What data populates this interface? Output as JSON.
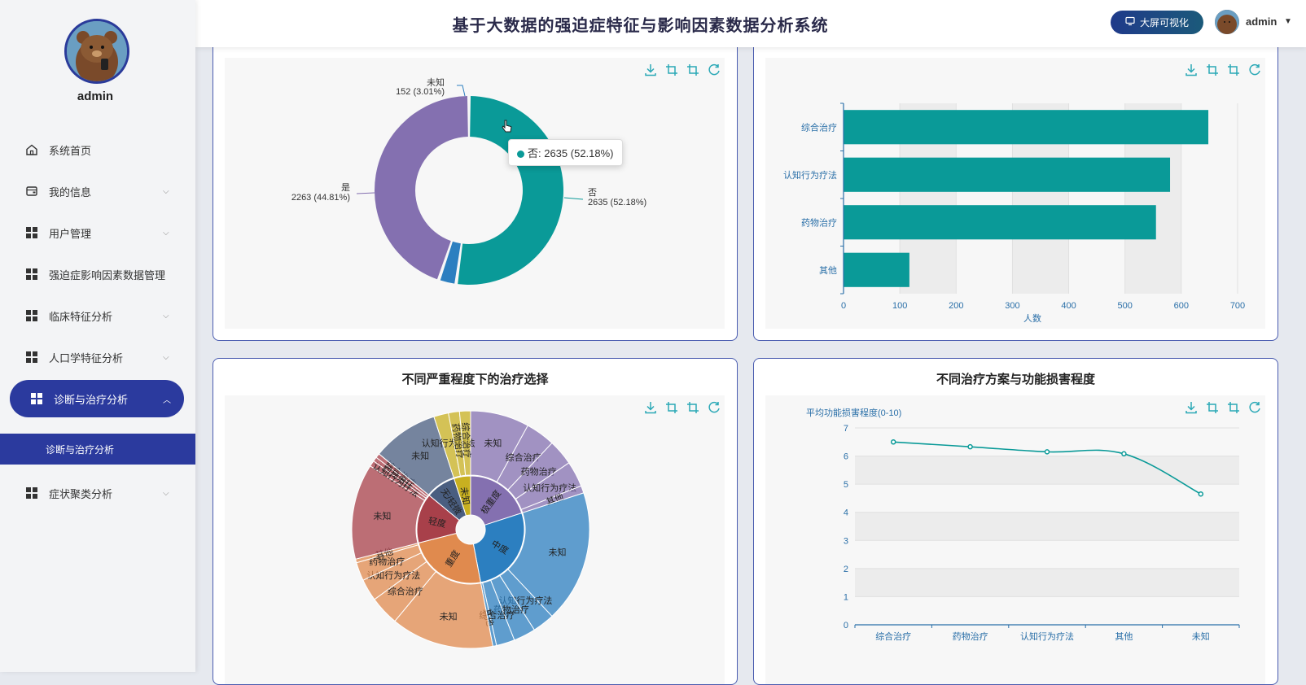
{
  "sidebar": {
    "username": "admin",
    "menu": [
      {
        "label": "系统首页",
        "icon": "home-icon",
        "has_children": false
      },
      {
        "label": "我的信息",
        "icon": "wallet-icon",
        "has_children": true
      },
      {
        "label": "用户管理",
        "icon": "grid-icon",
        "has_children": true
      },
      {
        "label": "强迫症影响因素数据管理",
        "icon": "grid-icon",
        "has_children": false
      },
      {
        "label": "临床特征分析",
        "icon": "grid-icon",
        "has_children": true
      },
      {
        "label": "人口学特征分析",
        "icon": "grid-icon",
        "has_children": true
      },
      {
        "label": "诊断与治疗分析",
        "icon": "grid-icon",
        "has_children": true,
        "active": true
      },
      {
        "label": "症状聚类分析",
        "icon": "grid-icon",
        "has_children": true
      }
    ],
    "submenu_active": "诊断与治疗分析"
  },
  "header": {
    "title": "基于大数据的强迫症特征与影响因素数据分析系统",
    "bigscreen_label": "大屏可视化",
    "username": "admin"
  },
  "colors": {
    "primary": "#2b3a9e",
    "teal": "#0a9a98",
    "purple": "#8470b0",
    "blue": "#2c7fc0"
  },
  "chart_data": [
    {
      "type": "pie",
      "title": "",
      "donut": true,
      "slices": [
        {
          "name": "否",
          "value": 2635,
          "percent": 52.18,
          "color": "#0a9a98"
        },
        {
          "name": "未知",
          "value": 152,
          "percent": 3.01,
          "color": "#2c7fc0"
        },
        {
          "name": "是",
          "value": 2263,
          "percent": 44.81,
          "color": "#8470b0"
        }
      ],
      "labels": [
        "否",
        "2635 (52.18%)",
        "未知",
        "152 (3.01%)",
        "是",
        "2263 (44.81%)"
      ],
      "tooltip": "否: 2635 (52.18%)"
    },
    {
      "type": "bar",
      "orientation": "horizontal",
      "title": "",
      "categories": [
        "综合治疗",
        "认知行为疗法",
        "药物治疗",
        "其他"
      ],
      "values": [
        648,
        580,
        555,
        117
      ],
      "xlabel": "人数",
      "xlim": [
        0,
        700
      ],
      "xticks": [
        "0",
        "100",
        "200",
        "300",
        "400",
        "500",
        "600",
        "700"
      ]
    },
    {
      "type": "pie",
      "subtype": "sunburst",
      "title": "不同严重程度下的治疗选择",
      "inner": [
        {
          "name": "极重度",
          "value": 20,
          "color": "#8470b0"
        },
        {
          "name": "中度",
          "value": 27,
          "color": "#2c7fc0"
        },
        {
          "name": "重度",
          "value": 24,
          "color": "#e08a4e"
        },
        {
          "name": "轻度",
          "value": 15,
          "color": "#a8404a"
        },
        {
          "name": "无/轻微",
          "value": 9,
          "color": "#4a5e80"
        },
        {
          "name": "未知",
          "value": 5,
          "color": "#c8b020"
        }
      ],
      "outer": [
        {
          "name": "未知",
          "parent": "极重度",
          "value": 8
        },
        {
          "name": "综合治疗",
          "parent": "极重度",
          "value": 4
        },
        {
          "name": "药物治疗",
          "parent": "极重度",
          "value": 3.5
        },
        {
          "name": "认知行为疗法",
          "parent": "极重度",
          "value": 3.5
        },
        {
          "name": "其他",
          "parent": "极重度",
          "value": 1
        },
        {
          "name": "未知",
          "parent": "中度",
          "value": 18
        },
        {
          "name": "认知行为疗法",
          "parent": "中度",
          "value": 3
        },
        {
          "name": "药物治疗",
          "parent": "中度",
          "value": 3
        },
        {
          "name": "综合治疗",
          "parent": "中度",
          "value": 2.5
        },
        {
          "name": "其他",
          "parent": "中度",
          "value": 0.5
        },
        {
          "name": "未知",
          "parent": "重度",
          "value": 14
        },
        {
          "name": "综合治疗",
          "parent": "重度",
          "value": 4
        },
        {
          "name": "认知行为疗法",
          "parent": "重度",
          "value": 3
        },
        {
          "name": "药物治疗",
          "parent": "重度",
          "value": 2.5
        },
        {
          "name": "其他",
          "parent": "重度",
          "value": 0.5
        },
        {
          "name": "未知",
          "parent": "轻度",
          "value": 13
        },
        {
          "name": "认知行为疗法",
          "parent": "轻度",
          "value": 0.8
        },
        {
          "name": "药物治疗",
          "parent": "轻度",
          "value": 0.6
        },
        {
          "name": "综合治疗",
          "parent": "轻度",
          "value": 0.6
        },
        {
          "name": "未知",
          "parent": "无/轻微",
          "value": 9
        },
        {
          "name": "认知行为疗法",
          "parent": "未知",
          "value": 2
        },
        {
          "name": "药物治疗",
          "parent": "未知",
          "value": 1.5
        },
        {
          "name": "综合治疗",
          "parent": "未知",
          "value": 1.5
        }
      ]
    },
    {
      "type": "line",
      "title": "不同治疗方案与功能损害程度",
      "categories": [
        "综合治疗",
        "药物治疗",
        "认知行为疗法",
        "其他",
        "未知"
      ],
      "values": [
        6.5,
        6.33,
        6.15,
        6.08,
        4.65
      ],
      "ylabel": "平均功能损害程度(0-10)",
      "ylim": [
        0,
        7
      ],
      "yticks": [
        "0",
        "1",
        "2",
        "3",
        "4",
        "5",
        "6",
        "7"
      ],
      "smooth": true
    }
  ]
}
